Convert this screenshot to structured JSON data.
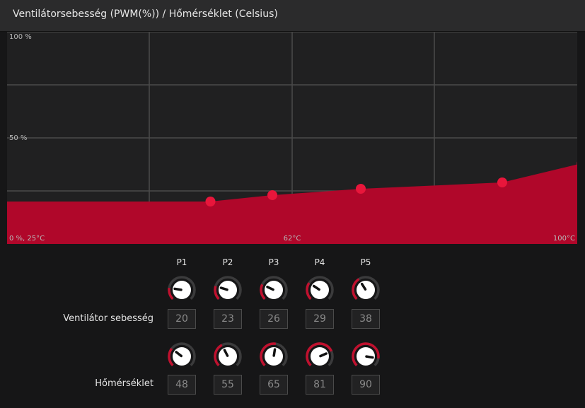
{
  "header": {
    "title": "Ventilátorsebesség (PWM(%)) / Hőmérséklet (Celsius)"
  },
  "chart_data": {
    "type": "area",
    "x_range": [
      25,
      100
    ],
    "y_range": [
      0,
      100
    ],
    "points": [
      {
        "name": "P1",
        "x": 48,
        "y": 20
      },
      {
        "name": "P2",
        "x": 55,
        "y": 23
      },
      {
        "name": "P3",
        "x": 65,
        "y": 26
      },
      {
        "name": "P4",
        "x": 81,
        "y": 29
      },
      {
        "name": "P5",
        "x": 90,
        "y": 38
      }
    ],
    "y_tick_labels": {
      "top": "100 %",
      "mid": "50 %"
    },
    "x_tick_labels": {
      "left": "0 %, 25°C",
      "mid": "62°C",
      "right": "100°C"
    },
    "colors": {
      "fill": "#b0072a",
      "point": "#e8163b",
      "grid": "#4a4a4a",
      "background": "#202021"
    }
  },
  "controls": {
    "points": [
      "P1",
      "P2",
      "P3",
      "P4",
      "P5"
    ],
    "fan_label": "Ventilátor sebesség",
    "temp_label": "Hőmérséklet",
    "fan_values": [
      "20",
      "23",
      "26",
      "29",
      "38"
    ],
    "temp_values": [
      "48",
      "55",
      "65",
      "81",
      "90"
    ],
    "colors": {
      "accent": "#c0102e",
      "knob": "#ffffff",
      "ring": "#3b3b3c"
    }
  }
}
